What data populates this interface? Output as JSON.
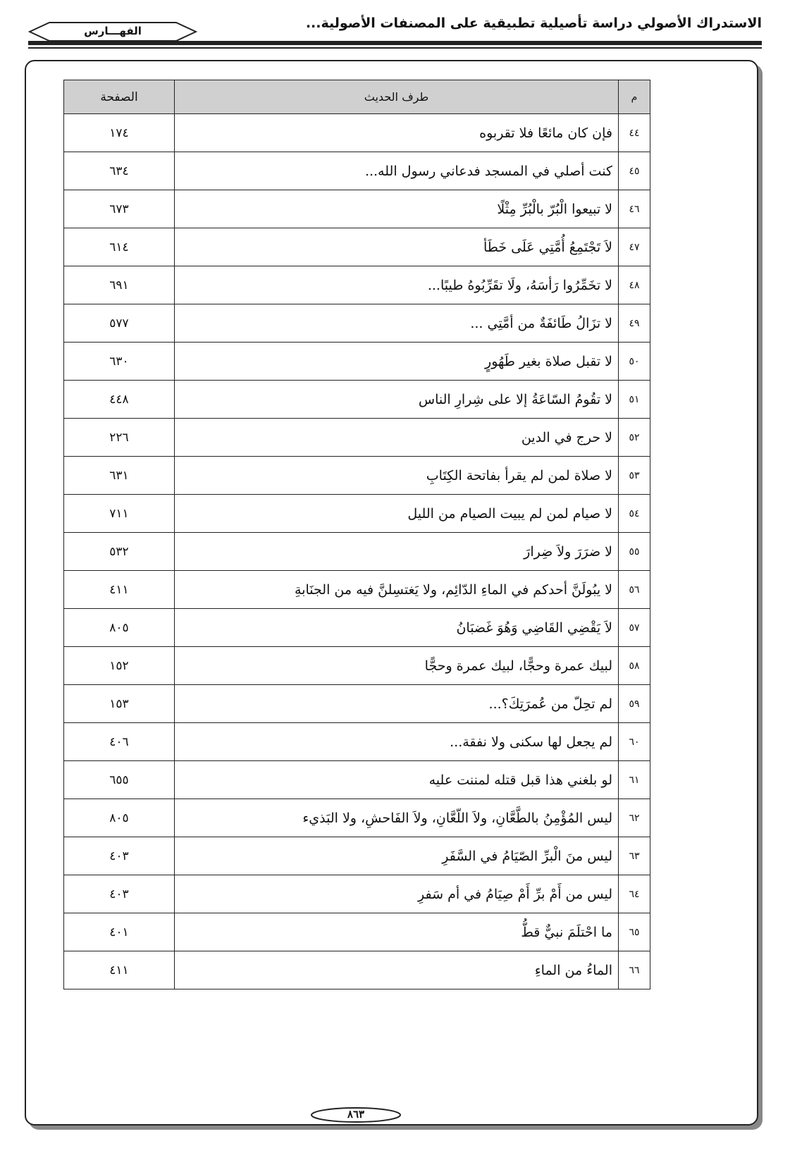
{
  "header": {
    "running_title": "الاستدراك الأصولي دراسة تأصيلية تطبيقية على المصنفات الأصولية...",
    "section": "الفهـــارس"
  },
  "table": {
    "columns": [
      "م",
      "طرف الحديث",
      "الصفحة"
    ],
    "rows": [
      {
        "no": "٤٤",
        "text": "فإن كان مائعًا فلا تقربوه",
        "page": "١٧٤"
      },
      {
        "no": "٤٥",
        "text": "كنت أصلي في المسجد فدعاني رسول الله...",
        "page": "٦٣٤"
      },
      {
        "no": "٤٦",
        "text": "لا تبيعوا الْبُرّ بالْبُرِّ مِثْلًا",
        "page": "٦٧٣"
      },
      {
        "no": "٤٧",
        "text": "لاَ تَجْتَمِعُ أُمَّتِي عَلَى خَطَأ",
        "page": "٦١٤"
      },
      {
        "no": "٤٨",
        "text": "لا تخَمِّرُوا رَأسَهُ، ولَا تقَرِّبُوهُ طيبًا...",
        "page": "٦٩١"
      },
      {
        "no": "٤٩",
        "text": "لا تزَالُ طَائفَةٌ من أمَّتِي ...",
        "page": "٥٧٧"
      },
      {
        "no": "٥٠",
        "text": "لا تقبل صلاة بغير طَهُورٍ",
        "page": "٦٣٠"
      },
      {
        "no": "٥١",
        "text": "لا تقُومُ السّاعَةُ إلا على شِرارِ الناس",
        "page": "٤٤٨"
      },
      {
        "no": "٥٢",
        "text": "لا حرج في الدين",
        "page": "٢٢٦"
      },
      {
        "no": "٥٣",
        "text": "لا صلاة لمن لم يقرأ بفاتحة الكِتَابِ",
        "page": "٦٣١"
      },
      {
        "no": "٥٤",
        "text": "لا صيام لمن لم يبيت الصيام من الليل",
        "page": "٧١١"
      },
      {
        "no": "٥٥",
        "text": "لا ضرَرَ ولاَ ضِرارَ",
        "page": "٥٣٢"
      },
      {
        "no": "٥٦",
        "text": "لا يبُولَنَّ أحدكم في الماءِ الدّائِم، ولا يَغتسِلنَّ فيه من الجنَابةِ",
        "page": "٤١١"
      },
      {
        "no": "٥٧",
        "text": "لاَ يَقْضِي القَاضِي وَهُوَ غَضبَانُ",
        "page": "٨٠٥"
      },
      {
        "no": "٥٨",
        "text": "لبيك عمرة وحجًّا، لبيك عمرة وحجًّا",
        "page": "١٥٢"
      },
      {
        "no": "٥٩",
        "text": "لم تحِلّ من عُمرَتِكَ؟...",
        "page": "١٥٣"
      },
      {
        "no": "٦٠",
        "text": "لم يجعل لها سكنى ولا نفقة...",
        "page": "٤٠٦"
      },
      {
        "no": "٦١",
        "text": "لو بلغني هذا قبل قتله لمننت عليه",
        "page": "٦٥٥"
      },
      {
        "no": "٦٢",
        "text": "ليس المُؤْمِنُ بالطَّعَّانِ، ولاَ اللّعَّانِ، ولاَ الفَاحشِ، ولا البَذيء",
        "page": "٨٠٥"
      },
      {
        "no": "٦٣",
        "text": "ليس منَ الْبرِّ الصّيَامُ في السَّفَرِ",
        "page": "٤٠٣"
      },
      {
        "no": "٦٤",
        "text": "ليس من أَمْ برِّ أَمْ صِيَامُ في أم سَفرِ",
        "page": "٤٠٣"
      },
      {
        "no": "٦٥",
        "text": "ما احْتلَمَ نبيٌّ قطُّ",
        "page": "٤٠١"
      },
      {
        "no": "٦٦",
        "text": "الماءُ من الماءِ",
        "page": "٤١١"
      }
    ]
  },
  "footer": {
    "page_number": "٨٦٣"
  }
}
